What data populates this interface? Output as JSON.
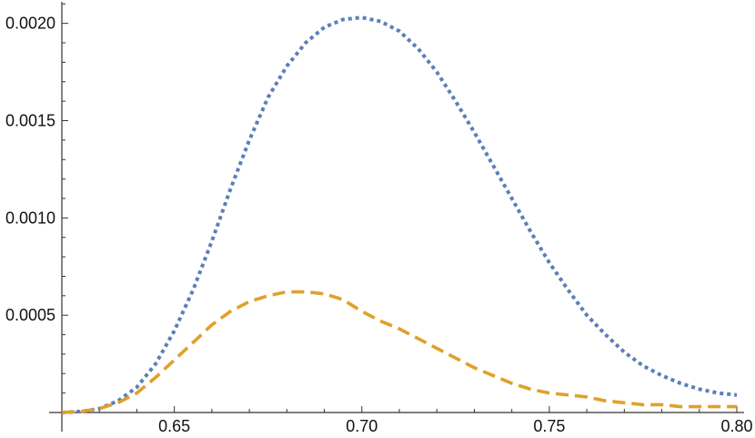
{
  "chart_data": {
    "type": "line",
    "title": "",
    "xlabel": "",
    "ylabel": "",
    "xlim": [
      0.62,
      0.8
    ],
    "ylim": [
      0,
      0.00212
    ],
    "grid": false,
    "legend": "none",
    "x_ticks": [
      0.65,
      0.7,
      0.75,
      0.8
    ],
    "x_tick_labels": [
      "0.65",
      "0.70",
      "0.75",
      "0.80"
    ],
    "x_minor_ticks": [
      0.62,
      0.63,
      0.64,
      0.66,
      0.67,
      0.68,
      0.69,
      0.71,
      0.72,
      0.73,
      0.74,
      0.76,
      0.77,
      0.78,
      0.79
    ],
    "y_ticks": [
      0.0005,
      0.001,
      0.0015,
      0.002
    ],
    "y_tick_labels": [
      "0.0005",
      "0.0010",
      "0.0015",
      "0.0020"
    ],
    "y_minor_ticks": [
      0.0001,
      0.0002,
      0.0003,
      0.0004,
      0.0006,
      0.0007,
      0.0008,
      0.0009,
      0.0011,
      0.0012,
      0.0013,
      0.0014,
      0.0016,
      0.0017,
      0.0018,
      0.0019,
      0.0021
    ],
    "series": [
      {
        "color": "#5a7fb8",
        "style": "dotted",
        "x": [
          0.62,
          0.625,
          0.63,
          0.635,
          0.64,
          0.645,
          0.65,
          0.655,
          0.66,
          0.665,
          0.67,
          0.675,
          0.68,
          0.685,
          0.69,
          0.695,
          0.7,
          0.705,
          0.71,
          0.715,
          0.72,
          0.725,
          0.73,
          0.735,
          0.74,
          0.745,
          0.75,
          0.755,
          0.76,
          0.765,
          0.77,
          0.775,
          0.78,
          0.785,
          0.79,
          0.795,
          0.8
        ],
        "y": [
          0.0,
          5e-06,
          2e-05,
          6e-05,
          0.00013,
          0.00025,
          0.00042,
          0.00063,
          0.00088,
          0.00115,
          0.0014,
          0.00162,
          0.00178,
          0.0019,
          0.00198,
          0.00202,
          0.00203,
          0.00201,
          0.00196,
          0.00187,
          0.00175,
          0.0016,
          0.00144,
          0.00127,
          0.0011,
          0.00093,
          0.00077,
          0.00063,
          0.0005,
          0.0004,
          0.00031,
          0.00024,
          0.00019,
          0.00015,
          0.00012,
          0.0001,
          9e-05
        ]
      },
      {
        "color": "#e0a02a",
        "style": "dashed",
        "x": [
          0.62,
          0.625,
          0.63,
          0.635,
          0.64,
          0.645,
          0.65,
          0.655,
          0.66,
          0.665,
          0.67,
          0.675,
          0.68,
          0.685,
          0.69,
          0.695,
          0.7,
          0.705,
          0.71,
          0.715,
          0.72,
          0.725,
          0.73,
          0.735,
          0.74,
          0.745,
          0.75,
          0.755,
          0.76,
          0.765,
          0.77,
          0.775,
          0.78,
          0.785,
          0.79,
          0.795,
          0.8
        ],
        "y": [
          0.0,
          5e-06,
          2e-05,
          5e-05,
          0.0001,
          0.00018,
          0.00027,
          0.00036,
          0.00045,
          0.00052,
          0.00057,
          0.0006,
          0.00062,
          0.00062,
          0.00061,
          0.00058,
          0.00052,
          0.00047,
          0.00043,
          0.00038,
          0.00033,
          0.00028,
          0.00023,
          0.00019,
          0.00015,
          0.00012,
          0.0001,
          9e-05,
          8e-05,
          6e-05,
          5e-05,
          4e-05,
          4e-05,
          3e-05,
          3e-05,
          3e-05,
          3e-05
        ]
      }
    ]
  }
}
